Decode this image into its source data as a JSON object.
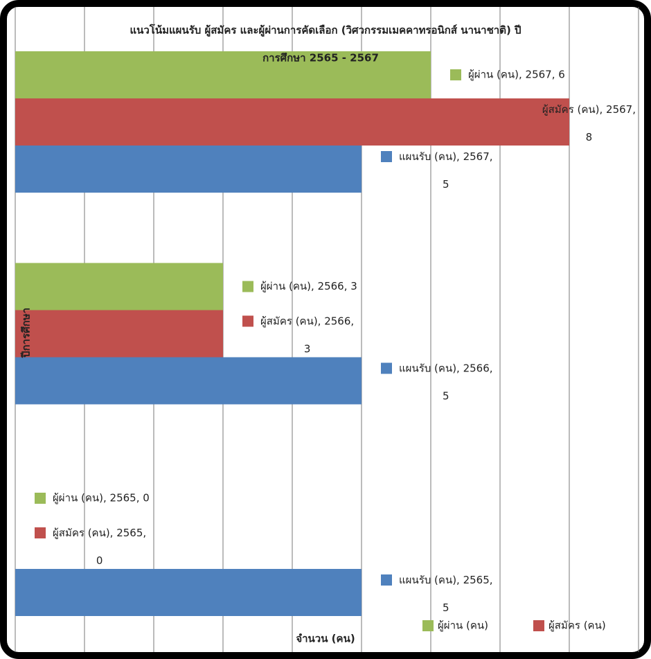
{
  "chart_data": {
    "type": "hbar",
    "title": [
      "แนวโน้มแผนรับ ผู้สมัคร และผู้ผ่านการคัดเลือก (วิศวกรรมเมคคาทรอนิกส์ นานาชาติ) ปี",
      "การศึกษา 2565 - 2567"
    ],
    "y_label": "ปีการศึกษา",
    "x_label": "จำนวน (คน)",
    "categories": [
      "2565",
      "2566",
      "2567"
    ],
    "series": [
      {
        "name": "แผนรับ (คน)",
        "color": "#4f81bd",
        "values": [
          5,
          5,
          5
        ],
        "legend": false,
        "value_labels": [
          "แผนรับ (คน), 2565, 5",
          "แผนรับ (คน), 2566, 5",
          "แผนรับ (คน), 2567, 5"
        ]
      },
      {
        "name": "ผู้สมัคร (คน)",
        "color": "#c0504d",
        "values": [
          0,
          3,
          8
        ],
        "legend": true,
        "value_labels": [
          "ผู้สมัคร (คน), 2565, 0",
          "ผู้สมัคร (คน), 2566, 3",
          "ผู้สมัคร (คน), 2567, 8"
        ]
      },
      {
        "name": "ผู้ผ่าน (คน)",
        "color": "#9bbb59",
        "values": [
          0,
          3,
          6
        ],
        "legend": true,
        "value_labels": [
          "ผู้ผ่าน (คน), 2565, 0",
          "ผู้ผ่าน (คน), 2566, 3",
          "ผู้ผ่าน (คน), 2567, 6"
        ]
      }
    ],
    "xlim": [
      0,
      9
    ],
    "xticks": [
      0,
      1,
      2,
      3,
      4,
      5,
      6,
      7,
      8,
      9
    ],
    "grid": true
  }
}
